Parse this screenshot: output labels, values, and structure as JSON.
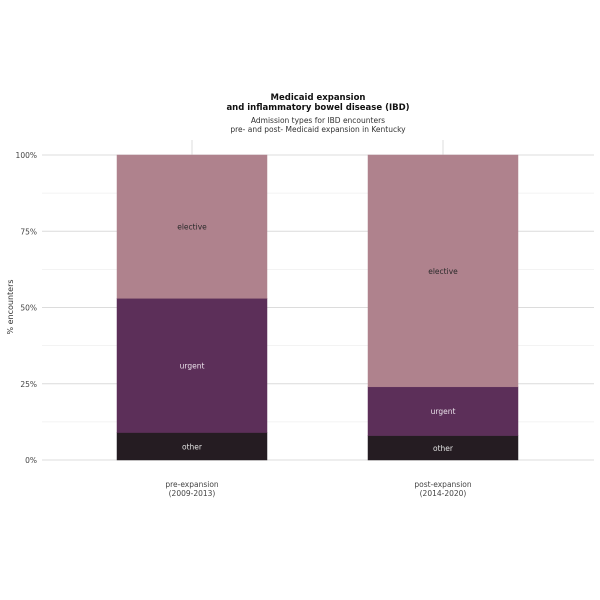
{
  "chart_data": {
    "type": "bar",
    "stacked": true,
    "percent": true,
    "title_lines": [
      "Medicaid expansion",
      "and inflammatory bowel disease (IBD)"
    ],
    "subtitle_lines": [
      "Admission types for IBD encounters",
      "pre- and post- Medicaid expansion in Kentucky"
    ],
    "ylabel": "% encounters",
    "xlabel": "",
    "ylim": [
      0,
      100
    ],
    "y_ticks": [
      0,
      25,
      50,
      75,
      100
    ],
    "y_tick_labels": [
      "0%",
      "25%",
      "50%",
      "75%",
      "100%"
    ],
    "grid": true,
    "categories": [
      {
        "lines": [
          "pre-expansion",
          "(2009-2013)"
        ]
      },
      {
        "lines": [
          "post-expansion",
          "(2014-2020)"
        ]
      }
    ],
    "series": [
      {
        "name": "other",
        "color": "#251c22",
        "label_color": "#e0e0e0",
        "values": [
          9,
          8
        ]
      },
      {
        "name": "urgent",
        "color": "#5c2f59",
        "label_color": "#e8e0e8",
        "values": [
          44,
          16
        ]
      },
      {
        "name": "elective",
        "color": "#af828d",
        "label_color": "#2b2b2b",
        "values": [
          47,
          76
        ]
      }
    ]
  }
}
